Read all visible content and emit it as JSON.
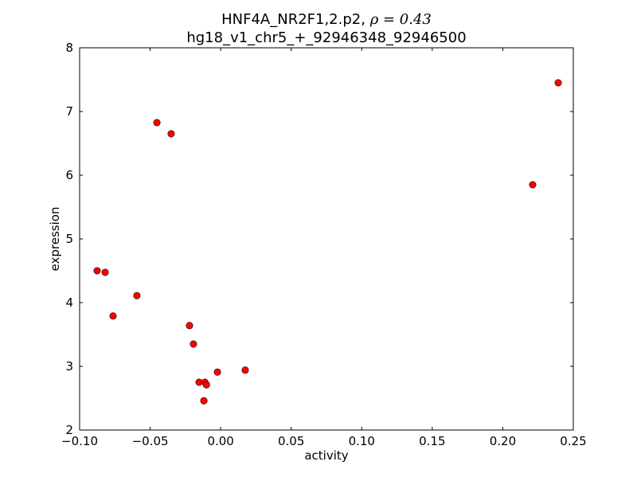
{
  "chart_data": {
    "type": "scatter",
    "title_line1": "HNF4A_NR2F1,2.p2, ",
    "title_rho": "ρ = 0.43",
    "title_line2": "hg18_v1_chr5_+_92946348_92946500",
    "xlabel": "activity",
    "ylabel": "expression",
    "xlim": [
      -0.1,
      0.25
    ],
    "ylim": [
      2,
      8
    ],
    "xticks": [
      -0.1,
      -0.05,
      0.0,
      0.05,
      0.1,
      0.15,
      0.2,
      0.25
    ],
    "xtick_labels": [
      "−0.10",
      "−0.05",
      "0.00",
      "0.05",
      "0.10",
      "0.15",
      "0.20",
      "0.25"
    ],
    "yticks": [
      2,
      3,
      4,
      5,
      6,
      7,
      8
    ],
    "ytick_labels": [
      "2",
      "3",
      "4",
      "5",
      "6",
      "7",
      "8"
    ],
    "grid": false,
    "marker_color": "#ff0000",
    "points": [
      {
        "x": 0.2393,
        "y": 7.45
      },
      {
        "x": 0.2212,
        "y": 5.85
      },
      {
        "x": -0.0452,
        "y": 6.825
      },
      {
        "x": -0.0351,
        "y": 6.65
      },
      {
        "x": -0.0876,
        "y": 4.5
      },
      {
        "x": -0.0819,
        "y": 4.475
      },
      {
        "x": -0.0594,
        "y": 4.11
      },
      {
        "x": -0.0763,
        "y": 3.79
      },
      {
        "x": -0.0221,
        "y": 3.64
      },
      {
        "x": -0.0193,
        "y": 3.35
      },
      {
        "x": 0.0174,
        "y": 2.94
      },
      {
        "x": -0.0023,
        "y": 2.91
      },
      {
        "x": -0.0153,
        "y": 2.75
      },
      {
        "x": -0.0112,
        "y": 2.75
      },
      {
        "x": -0.0101,
        "y": 2.71
      },
      {
        "x": -0.0119,
        "y": 2.46
      }
    ]
  }
}
